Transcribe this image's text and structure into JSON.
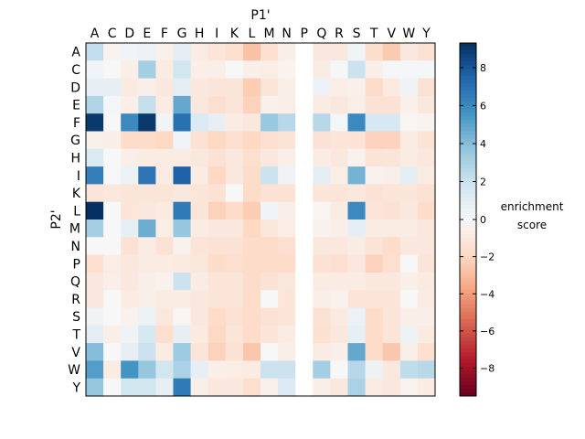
{
  "chart_data": {
    "type": "heatmap",
    "xlabel": "P1'",
    "ylabel": "P2'",
    "x_categories": [
      "A",
      "C",
      "D",
      "E",
      "F",
      "G",
      "H",
      "I",
      "K",
      "L",
      "M",
      "N",
      "P",
      "Q",
      "R",
      "S",
      "T",
      "V",
      "W",
      "Y"
    ],
    "y_categories": [
      "A",
      "C",
      "D",
      "E",
      "F",
      "G",
      "H",
      "I",
      "K",
      "L",
      "M",
      "N",
      "P",
      "Q",
      "R",
      "S",
      "T",
      "V",
      "W",
      "Y"
    ],
    "colorbar": {
      "label_line1": "enrichment",
      "label_line2": "score",
      "range": [
        -9.5,
        9.3
      ],
      "ticks": [
        8,
        6,
        4,
        2,
        0,
        -2,
        -4,
        -6,
        -8
      ],
      "tick_labels": [
        "8",
        "6",
        "4",
        "2",
        "0",
        "−2",
        "−4",
        "−6",
        "−8"
      ],
      "colormap": "RdBu"
    },
    "values": [
      [
        2.3,
        -0.3,
        0.3,
        0.6,
        -0.5,
        1.0,
        -0.8,
        -1.2,
        -1.6,
        -2.8,
        -1.6,
        -0.6,
        null,
        -1.0,
        -1.0,
        0.3,
        -1.7,
        -2.5,
        -1.0,
        -1.4
      ],
      [
        0.3,
        0.0,
        -0.6,
        3.2,
        -0.8,
        1.8,
        -0.6,
        -0.6,
        0.0,
        -0.6,
        -0.7,
        -0.3,
        null,
        -0.8,
        0.1,
        2.0,
        -0.6,
        0.1,
        0.1,
        0.1
      ],
      [
        0.8,
        0.8,
        -0.9,
        -0.6,
        -1.0,
        1.0,
        -1.0,
        -1.2,
        -1.2,
        -2.4,
        -1.2,
        -0.6,
        null,
        0.6,
        -0.7,
        -0.5,
        -1.8,
        -0.9,
        0.4,
        -1.4
      ],
      [
        2.8,
        0.2,
        -0.6,
        2.2,
        -0.8,
        4.8,
        -1.0,
        -1.6,
        -1.2,
        -2.2,
        -0.5,
        -0.7,
        null,
        -0.8,
        -1.0,
        -0.6,
        -1.4,
        -1.4,
        -0.5,
        -1.0
      ],
      [
        9.0,
        0.0,
        6.0,
        9.0,
        0.3,
        7.0,
        1.4,
        0.8,
        -0.8,
        -1.0,
        3.5,
        2.6,
        null,
        2.6,
        0.2,
        6.0,
        1.6,
        1.6,
        -0.2,
        -0.3
      ],
      [
        -0.5,
        -0.6,
        -1.8,
        -1.8,
        -2.0,
        0.3,
        -1.4,
        -2.0,
        -1.6,
        -2.0,
        -1.6,
        -1.3,
        null,
        -1.4,
        -1.2,
        -1.3,
        -2.2,
        -2.2,
        -0.8,
        -1.3
      ],
      [
        1.4,
        0.0,
        -0.6,
        -0.8,
        -0.8,
        -0.8,
        -1.0,
        -1.4,
        -1.0,
        -1.6,
        -1.0,
        -0.6,
        null,
        -0.8,
        -1.0,
        -0.4,
        -1.3,
        -1.2,
        -0.8,
        -1.0
      ],
      [
        6.4,
        0.0,
        0.6,
        6.8,
        -0.8,
        7.6,
        -0.8,
        -2.0,
        -1.0,
        -1.8,
        2.0,
        0.4,
        null,
        1.0,
        -0.7,
        4.4,
        -0.4,
        -0.6,
        1.0,
        -0.8
      ],
      [
        -1.2,
        -1.0,
        -1.2,
        -1.2,
        -1.2,
        -1.0,
        -1.2,
        -1.4,
        0.0,
        -1.8,
        -1.4,
        -1.4,
        null,
        -1.2,
        -1.2,
        -1.0,
        -1.4,
        -1.2,
        -1.2,
        -1.4
      ],
      [
        9.3,
        0.0,
        -1.2,
        -1.0,
        -0.9,
        6.6,
        -1.2,
        -2.2,
        -1.8,
        -2.4,
        0.3,
        -0.6,
        null,
        -0.2,
        -0.8,
        6.0,
        -1.2,
        -1.4,
        -1.0,
        -1.8
      ],
      [
        3.2,
        0.0,
        0.8,
        4.6,
        -0.7,
        3.6,
        -0.8,
        -1.0,
        -1.0,
        -2.0,
        -1.1,
        -0.7,
        null,
        -0.4,
        -0.6,
        0.9,
        -0.8,
        -0.8,
        -0.8,
        -1.0
      ],
      [
        0.0,
        0.0,
        -1.4,
        -0.8,
        -1.4,
        -0.4,
        -1.2,
        -1.4,
        -1.4,
        -1.8,
        -1.8,
        -1.6,
        null,
        -1.0,
        -1.0,
        -0.8,
        -1.3,
        -1.8,
        -1.0,
        -1.0
      ],
      [
        -1.6,
        -0.7,
        -1.0,
        -0.8,
        -0.8,
        -0.9,
        -1.1,
        -1.8,
        -1.6,
        -1.8,
        -1.8,
        -1.8,
        null,
        -1.4,
        -1.6,
        -1.0,
        -2.2,
        -1.6,
        0.0,
        -1.2
      ],
      [
        -1.0,
        -0.6,
        -1.0,
        -0.6,
        -0.4,
        2.0,
        -0.8,
        -1.2,
        -1.2,
        -1.8,
        -1.4,
        -1.1,
        null,
        -0.8,
        -0.8,
        -0.8,
        -1.0,
        -1.0,
        -0.6,
        -0.9
      ],
      [
        -1.0,
        0.0,
        -0.8,
        -0.6,
        -0.8,
        -0.8,
        -1.0,
        -1.2,
        -1.2,
        -1.8,
        0.0,
        -1.2,
        null,
        -0.6,
        -0.4,
        -1.2,
        -1.2,
        -1.2,
        0.0,
        -0.8
      ],
      [
        0.4,
        0.0,
        -0.4,
        0.6,
        -1.0,
        -0.2,
        -1.0,
        -1.8,
        -1.4,
        -1.8,
        -1.4,
        -1.2,
        null,
        -1.4,
        -0.9,
        0.6,
        -1.8,
        -1.2,
        -0.6,
        -0.6
      ],
      [
        1.0,
        -0.6,
        0.4,
        1.6,
        -1.6,
        0.8,
        -0.9,
        -2.0,
        -1.2,
        -1.8,
        -1.2,
        -0.8,
        null,
        -1.5,
        -1.0,
        0.8,
        -1.8,
        -1.2,
        0.5,
        -0.9
      ],
      [
        4.0,
        0.0,
        0.8,
        2.0,
        -0.8,
        3.4,
        -1.2,
        -2.2,
        -1.4,
        -2.6,
        0.0,
        -0.6,
        null,
        -0.8,
        -0.6,
        4.8,
        -1.8,
        -2.6,
        -0.6,
        -1.6
      ],
      [
        5.2,
        -0.8,
        5.6,
        3.6,
        1.8,
        3.0,
        0.8,
        -0.6,
        -0.7,
        -0.8,
        2.0,
        2.0,
        null,
        3.2,
        0.0,
        2.6,
        0.5,
        -1.0,
        2.4,
        2.6
      ],
      [
        3.6,
        0.0,
        1.8,
        1.8,
        0.8,
        6.6,
        -0.6,
        -1.0,
        -1.0,
        -1.6,
        -0.5,
        1.4,
        null,
        -0.6,
        -1.0,
        3.0,
        -0.8,
        -1.0,
        -0.3,
        -0.8
      ]
    ]
  }
}
